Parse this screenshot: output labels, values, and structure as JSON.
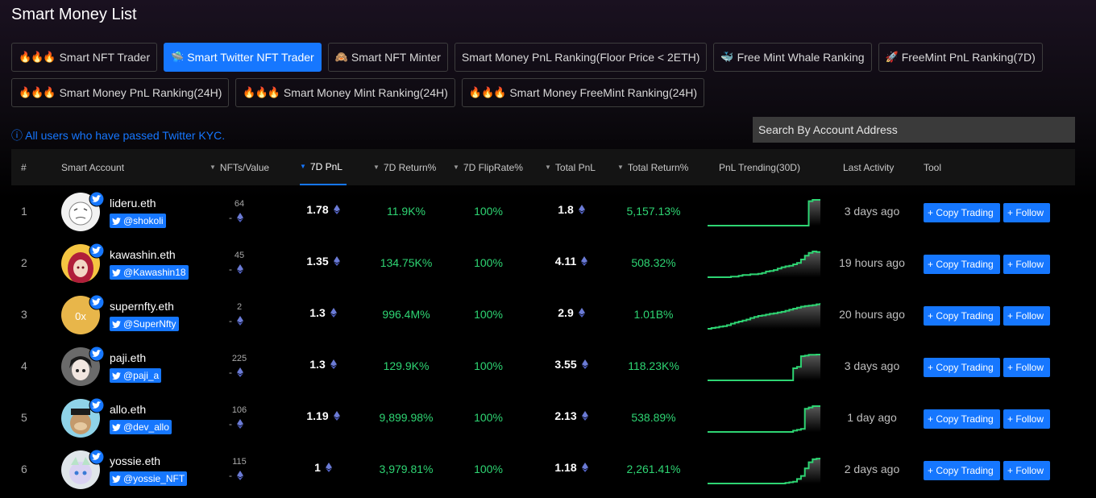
{
  "page": {
    "title": "Smart Money List"
  },
  "tabs": [
    [
      {
        "icon": "🔥🔥🔥",
        "label": "Smart NFT Trader",
        "active": false
      },
      {
        "icon": "🛸",
        "label": "Smart Twitter NFT Trader",
        "active": true
      },
      {
        "icon": "🙈",
        "label": "Smart NFT Minter",
        "active": false
      },
      {
        "icon": "",
        "label": "Smart Money PnL Ranking(Floor Price < 2ETH)",
        "active": false
      },
      {
        "icon": "🐳",
        "label": "Free Mint Whale Ranking",
        "active": false
      },
      {
        "icon": "🚀",
        "label": "FreeMint PnL Ranking(7D)",
        "active": false
      }
    ],
    [
      {
        "icon": "🔥🔥🔥",
        "label": "Smart Money PnL Ranking(24H)",
        "active": false
      },
      {
        "icon": "🔥🔥🔥",
        "label": "Smart Money Mint Ranking(24H)",
        "active": false
      },
      {
        "icon": "🔥🔥🔥",
        "label": "Smart Money FreeMint Ranking(24H)",
        "active": false
      }
    ]
  ],
  "kyc_note": "ⓘ All users who have passed Twitter KYC.",
  "search": {
    "placeholder": "Search By Account Address",
    "value": ""
  },
  "table": {
    "headers": {
      "rank": "#",
      "account": "Smart Account",
      "nfts": "NFTs/Value",
      "pnl7d": "7D PnL",
      "ret7d": "7D Return%",
      "flip7d": "7D FlipRate%",
      "total_pnl": "Total PnL",
      "total_ret": "Total Return%",
      "trend": "PnL Trending(30D)",
      "last": "Last Activity",
      "tool": "Tool"
    },
    "sorted_column": "7D PnL",
    "buttons": {
      "copy": "+ Copy Trading",
      "follow": "+ Follow"
    },
    "rows": [
      {
        "rank": "1",
        "name": "lideru.eth",
        "handle": "@shokoli",
        "nfts": "64",
        "value": "-",
        "pnl7d": "1.78",
        "ret7d": "11.9K%",
        "flip7d": "100%",
        "total_pnl": "1.8",
        "total_ret": "5,157.13%",
        "last": "3 days ago",
        "trend": [
          0,
          0,
          0,
          0,
          0,
          0,
          0,
          0,
          0,
          0,
          0,
          0,
          0,
          0,
          0,
          0,
          0,
          0,
          0,
          0,
          0,
          0,
          0,
          0,
          0,
          0,
          0.95,
          1,
          1,
          1
        ]
      },
      {
        "rank": "2",
        "name": "kawashin.eth",
        "handle": "@Kawashin18",
        "nfts": "45",
        "value": "-",
        "pnl7d": "1.35",
        "ret7d": "134.75K%",
        "flip7d": "100%",
        "total_pnl": "4.11",
        "total_ret": "508.32%",
        "last": "19 hours ago",
        "trend": [
          0,
          0,
          0,
          0,
          0,
          0,
          0.02,
          0.02,
          0.05,
          0.08,
          0.08,
          0.1,
          0.1,
          0.12,
          0.15,
          0.2,
          0.22,
          0.25,
          0.3,
          0.35,
          0.38,
          0.4,
          0.45,
          0.5,
          0.62,
          0.75,
          0.85,
          0.9,
          0.88,
          0.9
        ]
      },
      {
        "rank": "3",
        "name": "supernfty.eth",
        "handle": "@SuperNfty",
        "nfts": "2",
        "value": "-",
        "pnl7d": "1.3",
        "ret7d": "996.4M%",
        "flip7d": "100%",
        "total_pnl": "2.9",
        "total_ret": "1.01B%",
        "last": "20 hours ago",
        "trend": [
          0,
          0.03,
          0.05,
          0.08,
          0.1,
          0.14,
          0.2,
          0.24,
          0.28,
          0.32,
          0.36,
          0.42,
          0.46,
          0.5,
          0.52,
          0.55,
          0.58,
          0.6,
          0.63,
          0.66,
          0.7,
          0.74,
          0.78,
          0.82,
          0.86,
          0.88,
          0.9,
          0.92,
          0.95,
          1
        ]
      },
      {
        "rank": "4",
        "name": "paji.eth",
        "handle": "@paji_a",
        "nfts": "225",
        "value": "-",
        "pnl7d": "1.3",
        "ret7d": "129.9K%",
        "flip7d": "100%",
        "total_pnl": "3.55",
        "total_ret": "118.23K%",
        "last": "3 days ago",
        "trend": [
          0,
          0,
          0,
          0,
          0,
          0,
          0,
          0,
          0,
          0,
          0,
          0,
          0,
          0,
          0,
          0,
          0,
          0,
          0,
          0,
          0,
          0,
          0.45,
          0.5,
          0.9,
          0.92,
          0.95,
          0.95,
          0.96,
          0.96
        ]
      },
      {
        "rank": "5",
        "name": "allo.eth",
        "handle": "@dev_allo",
        "nfts": "106",
        "value": "-",
        "pnl7d": "1.19",
        "ret7d": "9,899.98%",
        "flip7d": "100%",
        "total_pnl": "2.13",
        "total_ret": "538.89%",
        "last": "1 day ago",
        "trend": [
          0,
          0,
          0,
          0,
          0,
          0,
          0,
          0,
          0,
          0,
          0,
          0,
          0,
          0,
          0,
          0,
          0,
          0,
          0,
          0,
          0,
          0,
          0.05,
          0.08,
          0.12,
          0.9,
          0.95,
          1,
          1,
          1
        ]
      },
      {
        "rank": "6",
        "name": "yossie.eth",
        "handle": "@yossie_NFT",
        "nfts": "115",
        "value": "-",
        "pnl7d": "1",
        "ret7d": "3,979.81%",
        "flip7d": "100%",
        "total_pnl": "1.18",
        "total_ret": "2,261.41%",
        "last": "2 days ago",
        "trend": [
          0,
          0,
          0,
          0,
          0,
          0,
          0,
          0,
          0,
          0,
          0,
          0,
          0,
          0,
          0,
          0,
          0,
          0,
          0,
          0,
          0.02,
          0.04,
          0.06,
          0.15,
          0.25,
          0.5,
          0.7,
          0.8,
          0.82,
          0.85
        ]
      }
    ]
  },
  "colors": {
    "accent": "#1677ff",
    "positive": "#2ed573",
    "background": "#000000"
  }
}
